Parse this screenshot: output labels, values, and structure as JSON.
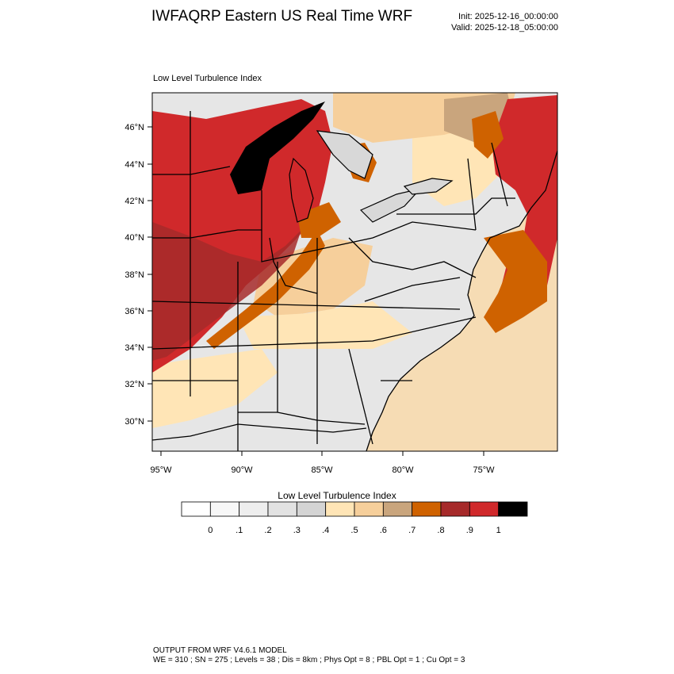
{
  "header": {
    "title": "IWFAQRP Eastern US Real Time WRF",
    "init": "Init: 2025-12-16_00:00:00",
    "valid": "Valid: 2025-12-18_05:00:00"
  },
  "map": {
    "subtitle": "Low Level Turbulence Index",
    "lat_labels": [
      "46°N",
      "44°N",
      "42°N",
      "40°N",
      "38°N",
      "36°N",
      "34°N",
      "32°N",
      "30°N"
    ],
    "lon_labels": [
      "95°W",
      "90°W",
      "85°W",
      "80°W",
      "75°W"
    ],
    "colors": {
      "lake": "#000000",
      "ocean": "#f6dcb4",
      "land_base": "#e9e9e9",
      "border": "#000000"
    }
  },
  "colorbar": {
    "title": "Low Level Turbulence Index",
    "labels": [
      "0",
      ".1",
      ".2",
      ".3",
      ".4",
      ".5",
      ".6",
      ".7",
      ".8",
      ".9",
      "1"
    ],
    "colors": [
      "#ffffff",
      "#f7f7f7",
      "#eeeeee",
      "#e2e2e2",
      "#d4d4d4",
      "#ffe5b6",
      "#f6cf9b",
      "#c9a57d",
      "#cf6200",
      "#a62a2a",
      "#d0292b",
      "#000000"
    ]
  },
  "footer": {
    "line1": "OUTPUT FROM WRF V4.6.1 MODEL",
    "line2": "WE = 310 ; SN = 275 ; Levels = 38 ; Dis = 8km ; Phys Opt = 8 ; PBL Opt = 1 ; Cu Opt = 3"
  }
}
